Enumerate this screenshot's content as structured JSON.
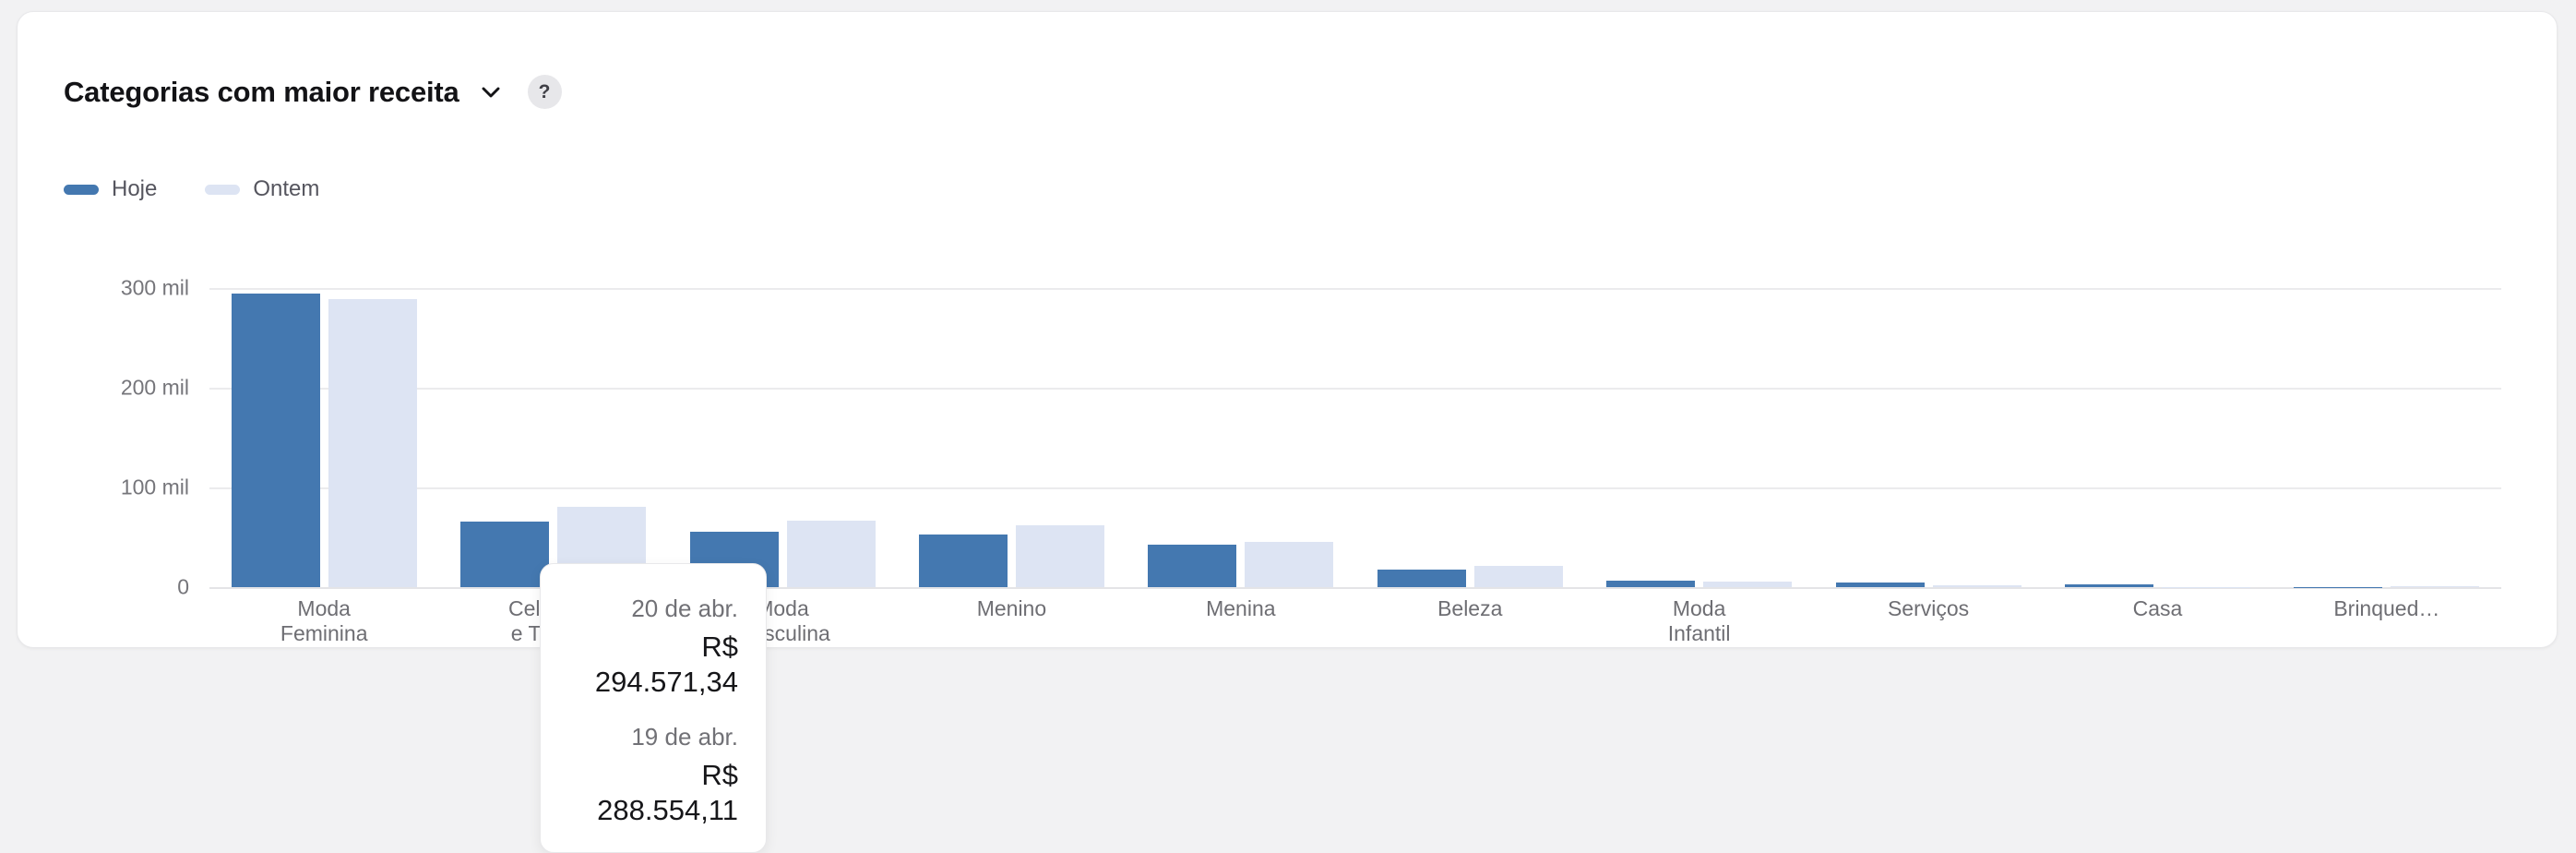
{
  "card": {
    "title": "Categorias com maior receita",
    "help_label": "?"
  },
  "legend": [
    {
      "label": "Hoje",
      "color": "#4478b0"
    },
    {
      "label": "Ontem",
      "color": "#dde4f3"
    }
  ],
  "tooltip": {
    "entries": [
      {
        "date": "20 de abr.",
        "value": "R$ 294.571,34"
      },
      {
        "date": "19 de abr.",
        "value": "R$ 288.554,11"
      }
    ]
  },
  "colors": {
    "hoje": "#4478b0",
    "ontem": "#dde4f3",
    "gridline": "#ebebed",
    "page_background": "#f2f2f3",
    "card_background": "#ffffff"
  },
  "chart_data": {
    "type": "bar",
    "title": "Categorias com maior receita",
    "categories": [
      "Moda Feminina",
      "Celulares e Tablets",
      "Moda Masculina",
      "Menino",
      "Menina",
      "Beleza",
      "Moda Infantil",
      "Serviços",
      "Casa",
      "Brinqued…"
    ],
    "category_label_lines": [
      [
        "Moda",
        "Feminina"
      ],
      [
        "Celulares",
        "e Tablets"
      ],
      [
        "Moda",
        "Masculina"
      ],
      [
        "Menino"
      ],
      [
        "Menina"
      ],
      [
        "Beleza"
      ],
      [
        "Moda",
        "Infantil"
      ],
      [
        "Serviços"
      ],
      [
        "Casa"
      ],
      [
        "Brinqued…"
      ]
    ],
    "series": [
      {
        "name": "Hoje",
        "color": "#4478b0",
        "values": [
          294571.34,
          66000,
          56000,
          53000,
          43000,
          18000,
          6500,
          5000,
          3000,
          500
        ]
      },
      {
        "name": "Ontem",
        "color": "#dde4f3",
        "values": [
          288554.11,
          81000,
          67000,
          62000,
          45000,
          21000,
          6000,
          1500,
          500,
          1000
        ]
      }
    ],
    "y_ticks": [
      {
        "label": "300 mil",
        "value": 300000
      },
      {
        "label": "200 mil",
        "value": 200000
      },
      {
        "label": "100 mil",
        "value": 100000
      },
      {
        "label": "0",
        "value": 0
      }
    ],
    "ylim": [
      0,
      300000
    ],
    "grid": "horizontal",
    "legend_position": "top-left"
  }
}
